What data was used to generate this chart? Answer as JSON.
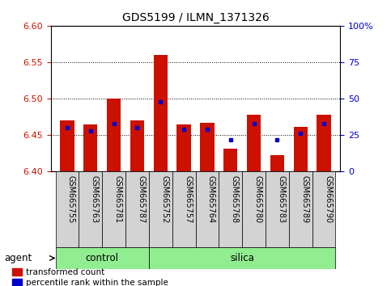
{
  "title": "GDS5199 / ILMN_1371326",
  "samples": [
    "GSM665755",
    "GSM665763",
    "GSM665781",
    "GSM665787",
    "GSM665752",
    "GSM665757",
    "GSM665764",
    "GSM665768",
    "GSM665780",
    "GSM665783",
    "GSM665789",
    "GSM665790"
  ],
  "transformed_count": [
    6.47,
    6.465,
    6.5,
    6.47,
    6.56,
    6.465,
    6.467,
    6.432,
    6.478,
    6.423,
    6.461,
    6.478
  ],
  "percentile_rank": [
    30,
    28,
    33,
    30,
    48,
    29,
    29,
    22,
    33,
    22,
    26,
    33
  ],
  "baseline": 6.4,
  "ylim_left": [
    6.4,
    6.6
  ],
  "ylim_right": [
    0,
    100
  ],
  "yticks_left": [
    6.4,
    6.45,
    6.5,
    6.55,
    6.6
  ],
  "yticks_right": [
    0,
    25,
    50,
    75,
    100
  ],
  "ytick_labels_right": [
    "0",
    "25",
    "50",
    "75",
    "100%"
  ],
  "bar_color": "#cc1100",
  "blue_color": "#0000cc",
  "control_samples": 4,
  "control_label": "control",
  "silica_label": "silica",
  "agent_label": "agent",
  "legend_red": "transformed count",
  "legend_blue": "percentile rank within the sample",
  "bar_width": 0.6,
  "cell_bg": "#d3d3d3",
  "group_bg": "#90ee90",
  "tick_color_left": "#cc1100",
  "tick_color_right": "#0000cc",
  "grid_color": "black",
  "grid_linestyle": "dotted",
  "grid_linewidth": 0.7
}
